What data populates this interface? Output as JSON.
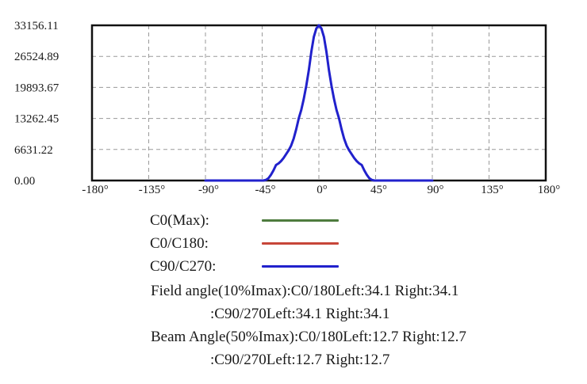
{
  "chart_data": {
    "type": "line",
    "title": "",
    "xlabel": "",
    "ylabel": "",
    "xlim": [
      -180,
      180
    ],
    "ylim": [
      0,
      33156.11
    ],
    "grid": "dashed",
    "grid_color": "#9a9a9a",
    "border_color": "#111111",
    "x_ticks": [
      {
        "angle": -180,
        "label": "-180°"
      },
      {
        "angle": -135,
        "label": "-135°"
      },
      {
        "angle": -90,
        "label": "-90°"
      },
      {
        "angle": -45,
        "label": "-45°"
      },
      {
        "angle": 0,
        "label": "0°"
      },
      {
        "angle": 45,
        "label": "45°"
      },
      {
        "angle": 90,
        "label": "90°"
      },
      {
        "angle": 135,
        "label": "135°"
      },
      {
        "angle": 180,
        "label": "180°"
      }
    ],
    "y_ticks": [
      {
        "value": 33156.11,
        "label": "33156.11"
      },
      {
        "value": 26524.89,
        "label": "26524.89"
      },
      {
        "value": 19893.67,
        "label": "19893.67"
      },
      {
        "value": 13262.45,
        "label": "13262.45"
      },
      {
        "value": 6631.22,
        "label": "6631.22"
      },
      {
        "value": 0.0,
        "label": "0.00"
      }
    ],
    "series": [
      {
        "name": "C90/C270",
        "color": "#2121cc",
        "points": [
          [
            -90,
            0
          ],
          [
            -80,
            0
          ],
          [
            -70,
            0
          ],
          [
            -60,
            0
          ],
          [
            -50,
            0
          ],
          [
            -46,
            0
          ],
          [
            -44,
            0
          ],
          [
            -42,
            132.6
          ],
          [
            -40,
            497.3
          ],
          [
            -38,
            1226.8
          ],
          [
            -36,
            2188.3
          ],
          [
            -34,
            3315.6
          ],
          [
            -32,
            3647.2
          ],
          [
            -30,
            4144.5
          ],
          [
            -28,
            4807.6
          ],
          [
            -26,
            5636.5
          ],
          [
            -24,
            6465.4
          ],
          [
            -22,
            7460.1
          ],
          [
            -20,
            8952.1
          ],
          [
            -18,
            10941.5
          ],
          [
            -16,
            13262.4
          ],
          [
            -14,
            15086.0
          ],
          [
            -12,
            17407.0
          ],
          [
            -10,
            20225.2
          ],
          [
            -8,
            23540.8
          ],
          [
            -6,
            27519.6
          ],
          [
            -4,
            30669.4
          ],
          [
            -2,
            32493.0
          ],
          [
            0,
            33156.1
          ],
          [
            2,
            32493.0
          ],
          [
            4,
            30669.4
          ],
          [
            6,
            27519.6
          ],
          [
            8,
            23540.8
          ],
          [
            10,
            20225.2
          ],
          [
            12,
            17407.0
          ],
          [
            14,
            15086.0
          ],
          [
            16,
            13262.4
          ],
          [
            18,
            10941.5
          ],
          [
            20,
            8952.1
          ],
          [
            22,
            7460.1
          ],
          [
            24,
            6465.4
          ],
          [
            26,
            5636.5
          ],
          [
            28,
            4807.6
          ],
          [
            30,
            4144.5
          ],
          [
            32,
            3647.2
          ],
          [
            34,
            3315.6
          ],
          [
            36,
            2188.3
          ],
          [
            38,
            1226.8
          ],
          [
            40,
            497.3
          ],
          [
            42,
            132.6
          ],
          [
            44,
            0
          ],
          [
            46,
            0
          ],
          [
            50,
            0
          ],
          [
            60,
            0
          ],
          [
            70,
            0
          ],
          [
            80,
            0
          ],
          [
            90,
            0
          ]
        ]
      }
    ]
  },
  "legend": {
    "items": [
      {
        "label": "C0(Max):",
        "color": "#4e7c3e"
      },
      {
        "label": "C0/C180:",
        "color": "#c74639"
      },
      {
        "label": "C90/C270:",
        "color": "#2121cc"
      }
    ]
  },
  "info": {
    "lines": [
      "Field angle(10%Imax):C0/180Left:34.1 Right:34.1",
      ":C90/270Left:34.1 Right:34.1",
      "Beam Angle(50%Imax):C0/180Left:12.7 Right:12.7",
      ":C90/270Left:12.7 Right:12.7"
    ]
  }
}
